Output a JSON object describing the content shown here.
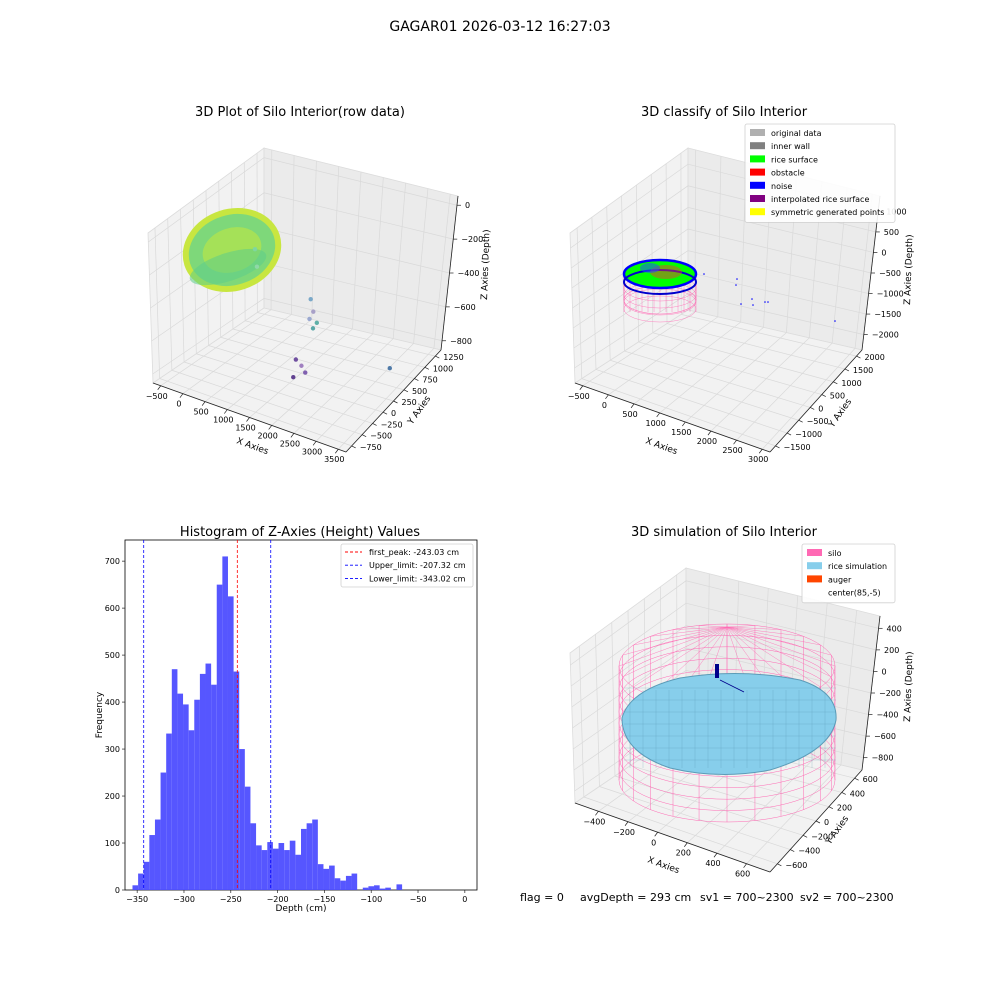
{
  "suptitle": "GAGAR01 2026-03-12 16:27:03",
  "footer": {
    "flag": "flag = 0",
    "avg_depth": "avgDepth = 293 cm",
    "sv1": "sv1 = 700~2300",
    "sv2": "sv2 = 700~2300"
  },
  "colors": {
    "hist_bar": "#4d4dff",
    "peak_line": "#ff0000",
    "limit_line": "#0000ff",
    "silo": "#ff69b4",
    "rice_sim": "#87ceeb",
    "auger": "#ff4500"
  },
  "chart_data": [
    {
      "id": "raw",
      "type": "scatter",
      "title": "3D Plot of Silo Interior(row data)",
      "xlabel": "X Axies",
      "ylabel": "Y Axies",
      "zlabel": "Z Axies (Depth)",
      "x_ticks": [
        "−500",
        "0",
        "500",
        "1000",
        "1500",
        "2000",
        "2500",
        "3000",
        "3500"
      ],
      "y_ticks": [
        "−750",
        "−500",
        "−250",
        "0",
        "250",
        "500",
        "750",
        "1000",
        "1250"
      ],
      "z_ticks": [
        "0",
        "−200",
        "−400",
        "−600",
        "−800"
      ],
      "outliers": [
        {
          "x": 800,
          "y": -100,
          "z": -250,
          "color": "#7fd7a0"
        },
        {
          "x": 900,
          "y": -150,
          "z": -330,
          "color": "#8fd8a8"
        },
        {
          "x": 1800,
          "y": 100,
          "z": -480,
          "color": "#7aa8c8"
        },
        {
          "x": 1800,
          "y": 150,
          "z": -560,
          "color": "#a8a0c8"
        },
        {
          "x": 1750,
          "y": 120,
          "z": -600,
          "color": "#9aa8d0"
        },
        {
          "x": 1900,
          "y": 130,
          "z": -610,
          "color": "#5fb0a8"
        },
        {
          "x": 1850,
          "y": 100,
          "z": -640,
          "color": "#5aa8a8"
        },
        {
          "x": 3200,
          "y": 400,
          "z": -800,
          "color": "#4f7aa8"
        },
        {
          "x": 1700,
          "y": -100,
          "z": -790,
          "color": "#7050a0"
        },
        {
          "x": 1800,
          "y": -80,
          "z": -820,
          "color": "#a080c0"
        },
        {
          "x": 1850,
          "y": -50,
          "z": -860,
          "color": "#8060b0"
        },
        {
          "x": 1700,
          "y": -150,
          "z": -880,
          "color": "#604090"
        }
      ]
    },
    {
      "id": "classify",
      "type": "scatter",
      "title": "3D classify of Silo Interior",
      "xlabel": "X Axies",
      "ylabel": "Y Axies",
      "zlabel": "Z Axies (Depth)",
      "x_ticks": [
        "−500",
        "0",
        "500",
        "1000",
        "1500",
        "2000",
        "2500",
        "3000"
      ],
      "y_ticks": [
        "−1500",
        "−1000",
        "−500",
        "0",
        "500",
        "1000",
        "1500",
        "2000"
      ],
      "z_ticks": [
        "1000",
        "500",
        "0",
        "−500",
        "−1000",
        "−1500",
        "−2000"
      ],
      "legend": [
        {
          "label": "original data",
          "color": "#b0b0b0"
        },
        {
          "label": "inner wall",
          "color": "#808080"
        },
        {
          "label": "rice surface",
          "color": "#00ff00"
        },
        {
          "label": "obstacle",
          "color": "#ff0000"
        },
        {
          "label": "noise",
          "color": "#0000ff"
        },
        {
          "label": "interpolated rice surface",
          "color": "#800080"
        },
        {
          "label": "symmetric generated points",
          "color": "#ffff00"
        }
      ]
    },
    {
      "id": "hist",
      "type": "bar",
      "title": "Histogram of Z-Axies (Height) Values",
      "xlabel": "Depth (cm)",
      "ylabel": "Frequency",
      "xlim": [
        -363,
        13
      ],
      "ylim": [
        0,
        745
      ],
      "x_ticks": [
        -350,
        -300,
        -250,
        -200,
        -150,
        -100,
        -50,
        0
      ],
      "x_tick_labels": [
        "−350",
        "−300",
        "−250",
        "−200",
        "−150",
        "−100",
        "−50",
        "0"
      ],
      "y_ticks": [
        0,
        100,
        200,
        300,
        400,
        500,
        600,
        700
      ],
      "y_tick_labels": [
        "0",
        "100",
        "200",
        "300",
        "400",
        "500",
        "600",
        "700"
      ],
      "bin_start": -355,
      "bin_width": 6,
      "values": [
        10,
        35,
        60,
        117,
        150,
        250,
        333,
        470,
        418,
        395,
        340,
        405,
        460,
        482,
        437,
        650,
        710,
        625,
        465,
        300,
        220,
        142,
        95,
        85,
        102,
        88,
        100,
        85,
        105,
        75,
        130,
        142,
        150,
        55,
        45,
        52,
        25,
        20,
        30,
        35,
        0,
        5,
        8,
        10,
        3,
        5,
        0,
        12
      ],
      "lines": [
        {
          "label": "first_peak: -243.03 cm",
          "x": -243.03,
          "color": "#ff0000"
        },
        {
          "label": "Upper_limit: -207.32 cm",
          "x": -207.32,
          "color": "#0000ff"
        },
        {
          "label": "Lower_limit: -343.02 cm",
          "x": -343.02,
          "color": "#0000ff"
        }
      ]
    },
    {
      "id": "sim",
      "type": "scatter",
      "title": "3D simulation of Silo Interior",
      "xlabel": "X Axies",
      "ylabel": "Y Axies",
      "zlabel": "Z Axies (Depth)",
      "x_ticks": [
        "−400",
        "−200",
        "0",
        "200",
        "400",
        "600"
      ],
      "y_ticks": [
        "−600",
        "−400",
        "−200",
        "0",
        "200",
        "400",
        "600"
      ],
      "z_ticks": [
        "400",
        "200",
        "0",
        "−200",
        "−400",
        "−600",
        "−800"
      ],
      "legend": [
        {
          "label": "silo",
          "color": "#ff69b4"
        },
        {
          "label": "rice simulation",
          "color": "#87ceeb"
        },
        {
          "label": "auger",
          "color": "#ff4500"
        },
        {
          "label": "center(85,-5)",
          "color": ""
        }
      ]
    }
  ]
}
